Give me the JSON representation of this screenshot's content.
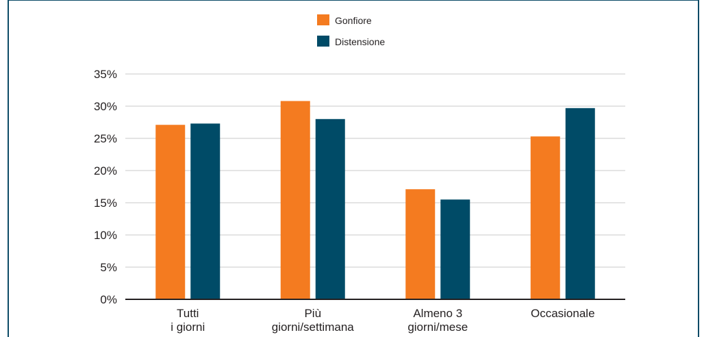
{
  "chart_data": {
    "type": "bar",
    "categories": [
      [
        "Tutti",
        "i giorni"
      ],
      [
        "Più",
        "giorni/settimana"
      ],
      [
        "Almeno 3",
        "giorni/mese"
      ],
      [
        "Occasionale"
      ]
    ],
    "series": [
      {
        "name": "Gonfiore",
        "color": "#f47b20",
        "values": [
          27.1,
          30.8,
          17.1,
          25.3
        ]
      },
      {
        "name": "Distensione",
        "color": "#004b67",
        "values": [
          27.3,
          28.0,
          15.5,
          29.7
        ]
      }
    ],
    "ylim": [
      0,
      35
    ],
    "yticks": [
      "0%",
      "5%",
      "10%",
      "15%",
      "20%",
      "25%",
      "30%",
      "35%"
    ],
    "grid": true,
    "legend_position": "top-center"
  }
}
